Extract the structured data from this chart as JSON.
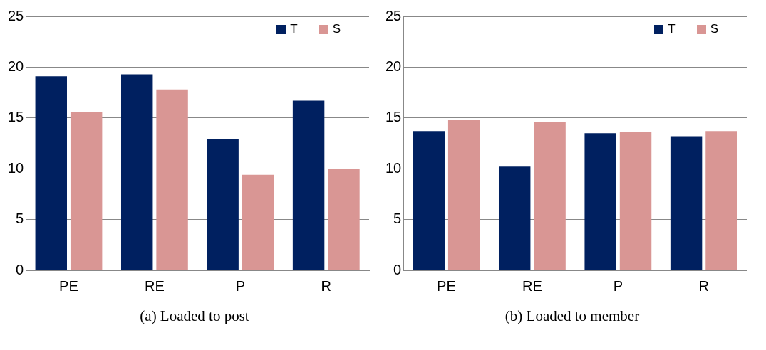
{
  "chart_data": [
    {
      "type": "bar",
      "xlabel": "(a)  Loaded to post",
      "categories": [
        "PE",
        "RE",
        "P",
        "R"
      ],
      "series": [
        {
          "name": "T",
          "color": "#002060",
          "values": [
            19.1,
            19.3,
            12.9,
            16.7
          ]
        },
        {
          "name": "S",
          "color": "#d99694",
          "values": [
            15.6,
            17.8,
            9.4,
            10.0
          ]
        }
      ],
      "ylim": [
        0,
        25
      ],
      "yticks": [
        0,
        5,
        10,
        15,
        20,
        25
      ],
      "grid": "y",
      "legend": "top right"
    },
    {
      "type": "bar",
      "xlabel": "(b) Loaded to member",
      "categories": [
        "PE",
        "RE",
        "P",
        "R"
      ],
      "series": [
        {
          "name": "T",
          "color": "#002060",
          "values": [
            13.7,
            10.2,
            13.5,
            13.2
          ]
        },
        {
          "name": "S",
          "color": "#d99694",
          "values": [
            14.8,
            14.6,
            13.6,
            13.7
          ]
        }
      ],
      "ylim": [
        0,
        25
      ],
      "yticks": [
        0,
        5,
        10,
        15,
        20,
        25
      ],
      "grid": "y",
      "legend": "top right"
    }
  ]
}
